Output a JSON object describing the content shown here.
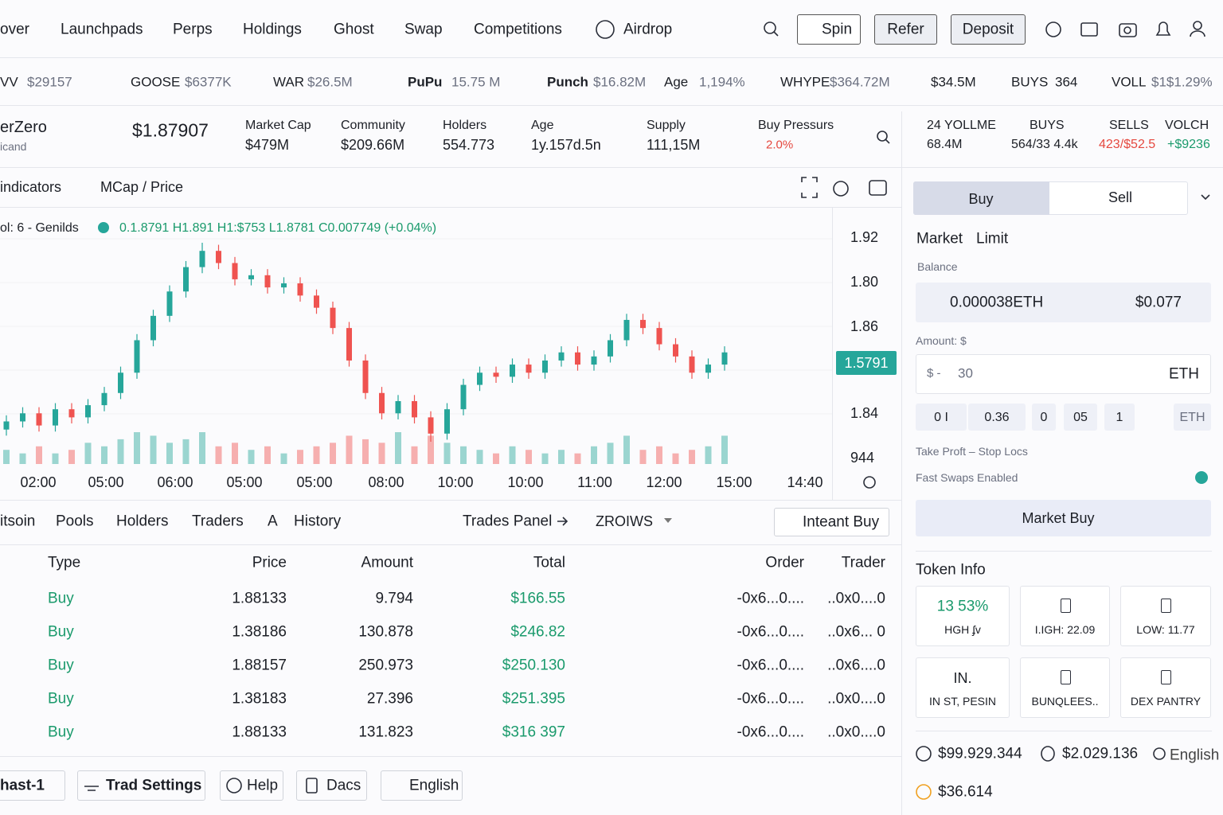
{
  "nav": {
    "items": [
      "over",
      "Launchpads",
      "Perps",
      "Holdings",
      "Ghost",
      "Swap",
      "Competitions",
      "Airdrop"
    ],
    "buttons": [
      "Spin",
      "Refer",
      "Deposit"
    ]
  },
  "ticker": [
    {
      "name": "VV",
      "value": "$29157"
    },
    {
      "name": "GOOSE",
      "value": "$6377K"
    },
    {
      "name": "WAR",
      "value": "$26.5M"
    },
    {
      "name": "PuPu",
      "value": "15.75 M"
    },
    {
      "name": "Punch",
      "value": "$16.82M"
    },
    {
      "name": "Age",
      "value": "1,194%"
    },
    {
      "name": "WHYPE",
      "value": "$364.72M"
    },
    {
      "value": "$34.5M"
    },
    {
      "name": "BUYS",
      "value": "364"
    },
    {
      "name": "VOLL",
      "value": "$1$1.29%"
    }
  ],
  "token": {
    "name": "erZero",
    "sub": "icand",
    "price": "$1.87907",
    "stats": [
      {
        "label": "Market Cap",
        "value": "$479M"
      },
      {
        "label": "Community",
        "value": "$209.66M"
      },
      {
        "label": "Holders",
        "value": "554.773"
      },
      {
        "label": "Age",
        "value": "1y.157d.5n"
      },
      {
        "label": "Supply",
        "value": "111,15M"
      },
      {
        "label": "Buy Pressurs",
        "value": "2.0%"
      }
    ],
    "side_stats": [
      {
        "label": "24 YOLLME",
        "value": "68.4M"
      },
      {
        "label": "BUYS",
        "value": "564/33 4.4k"
      },
      {
        "label": "SELLS",
        "value": "423/$52.5"
      },
      {
        "label": "VOLCH",
        "value": "+$9236"
      }
    ]
  },
  "toolbar": [
    "indicators",
    "MCap / Price"
  ],
  "chart": {
    "type": "candlestick",
    "legend": "ol: 6 - Genilds",
    "ohlc_text": "0.1.8791  H1.891  H1:$753  L1.8781  C0.007749 (+0.04%)",
    "price_labels": [
      "1.92",
      "1.80",
      "1.86",
      "1.84",
      "944"
    ],
    "price_tag": "1.5791",
    "time_labels": [
      "02:00",
      "05:00",
      "06:00",
      "05:00",
      "05:00",
      "08:00",
      "10:00",
      "10:00",
      "11:00",
      "12:00",
      "15:00",
      "14:40"
    ],
    "up_color": "#26a69a",
    "down_color": "#ef5350",
    "open": [
      1.824,
      1.828,
      1.832,
      1.826,
      1.834,
      1.83,
      1.836,
      1.842,
      1.852,
      1.868,
      1.88,
      1.892,
      1.904,
      1.912,
      1.906,
      1.898,
      1.9,
      1.894,
      1.896,
      1.89,
      1.884,
      1.874,
      1.858,
      1.842,
      1.832,
      1.838,
      1.83,
      1.822,
      1.834,
      1.846,
      1.852,
      1.85,
      1.856,
      1.852,
      1.858,
      1.862,
      1.856,
      1.86,
      1.868,
      1.878,
      1.874,
      1.866,
      1.86,
      1.852,
      1.856
    ],
    "high": [
      1.831,
      1.835,
      1.835,
      1.837,
      1.837,
      1.839,
      1.845,
      1.855,
      1.871,
      1.883,
      1.895,
      1.907,
      1.916,
      1.915,
      1.909,
      1.903,
      1.903,
      1.899,
      1.899,
      1.893,
      1.887,
      1.877,
      1.861,
      1.845,
      1.841,
      1.841,
      1.833,
      1.837,
      1.849,
      1.855,
      1.855,
      1.859,
      1.859,
      1.861,
      1.865,
      1.865,
      1.863,
      1.871,
      1.881,
      1.881,
      1.877,
      1.869,
      1.863,
      1.859,
      1.865
    ],
    "low": [
      1.821,
      1.825,
      1.823,
      1.823,
      1.827,
      1.827,
      1.833,
      1.839,
      1.849,
      1.865,
      1.877,
      1.889,
      1.901,
      1.903,
      1.895,
      1.895,
      1.891,
      1.891,
      1.887,
      1.881,
      1.871,
      1.855,
      1.839,
      1.829,
      1.829,
      1.827,
      1.818,
      1.819,
      1.831,
      1.843,
      1.847,
      1.847,
      1.849,
      1.849,
      1.855,
      1.853,
      1.853,
      1.857,
      1.865,
      1.871,
      1.863,
      1.857,
      1.849,
      1.849,
      1.853
    ],
    "close": [
      1.828,
      1.832,
      1.826,
      1.834,
      1.83,
      1.836,
      1.842,
      1.852,
      1.868,
      1.88,
      1.892,
      1.904,
      1.912,
      1.906,
      1.898,
      1.9,
      1.894,
      1.896,
      1.89,
      1.884,
      1.874,
      1.858,
      1.842,
      1.832,
      1.838,
      1.83,
      1.822,
      1.834,
      1.846,
      1.852,
      1.85,
      1.856,
      1.852,
      1.858,
      1.862,
      1.856,
      1.86,
      1.868,
      1.878,
      1.874,
      1.866,
      1.86,
      1.852,
      1.856,
      1.862
    ],
    "volume": [
      4,
      3,
      5,
      3,
      4,
      6,
      5,
      7,
      9,
      8,
      6,
      7,
      9,
      5,
      6,
      4,
      5,
      3,
      4,
      5,
      6,
      8,
      7,
      6,
      9,
      5,
      8,
      6,
      5,
      4,
      3,
      5,
      4,
      3,
      4,
      3,
      5,
      6,
      8,
      4,
      5,
      3,
      4,
      5,
      8
    ]
  },
  "tabs": [
    "itsoin",
    "Pools",
    "Holders",
    "Traders",
    "A",
    "History"
  ],
  "trades_panel": "Trades Panel",
  "pair": "ZROIWS",
  "instant_buy": "Inteant Buy",
  "table": {
    "header": [
      "Type",
      "Price",
      "Amount",
      "Total",
      "Order",
      "Trader"
    ],
    "rows": [
      [
        "Buy",
        "1.88133",
        "9.794",
        "$166.55",
        "-0x6...0....",
        "..0x0....0"
      ],
      [
        "Buy",
        "1.38186",
        "130.878",
        "$246.82",
        "-0x6...0....",
        "..0x6... 0"
      ],
      [
        "Buy",
        "1.88157",
        "250.973",
        "$250.130",
        "-0x6...0....",
        "..0x6....0"
      ],
      [
        "Buy",
        "1.38183",
        "27.396",
        "$251.395",
        "-0x6...0....",
        "..0x0....0"
      ],
      [
        "Buy",
        "1.88133",
        "131.823",
        "$316 397",
        "-0x6...0....",
        "..0x0....0"
      ]
    ]
  },
  "footer": [
    "hast-1",
    "Trad Settings",
    "Help",
    "Dacs",
    "English"
  ],
  "order": {
    "sides": [
      "Buy",
      "Sell"
    ],
    "modes": [
      "Market",
      "Limit"
    ],
    "balance_label": "Balance",
    "balance": "0.000038ETH",
    "balance_usd": "$0.077",
    "amount_label": "Amount: $",
    "amount_prefix": "$ -",
    "amount": "30",
    "amount_unit": "ETH",
    "presets": [
      "0 I",
      "0.36",
      "0",
      "05",
      "1",
      "ETH"
    ],
    "tp_sl": "Take Proft – Stop Locs",
    "fast_swaps": "Fast Swaps Enabled",
    "submit": "Market Buy"
  },
  "token_info": {
    "title": "Token Info",
    "cards": [
      {
        "value": "13 53%",
        "label": "HGH ʄv"
      },
      {
        "label": "I.IGH: 22.09"
      },
      {
        "label": "LOW: 11.77"
      },
      {
        "value": "IN.",
        "label": "IN ST, PESIN"
      },
      {
        "label": "BUNQLEES.."
      },
      {
        "label": "DEX PANTRY"
      }
    ],
    "totals": [
      "$99.929.344",
      "$2.029.136",
      "English",
      "$36.614"
    ]
  }
}
